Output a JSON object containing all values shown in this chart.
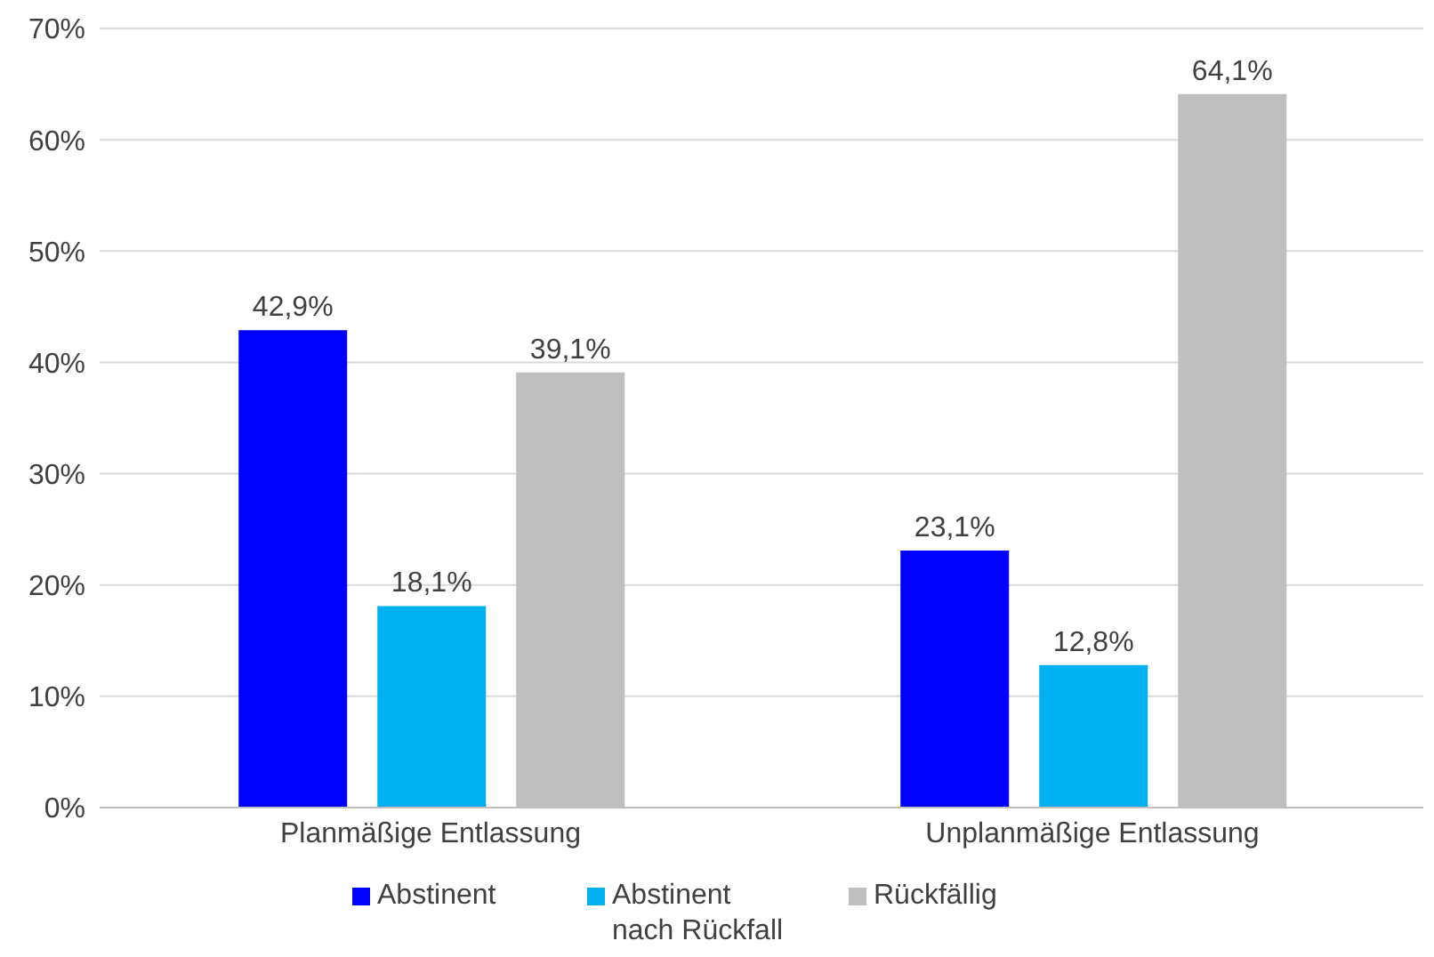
{
  "chart_data": {
    "type": "bar",
    "categories": [
      "Planmäßige Entlassung",
      "Unplanmäßige Entlassung"
    ],
    "series": [
      {
        "name": "Abstinent",
        "color": "#0000ff",
        "values": [
          42.9,
          23.1
        ],
        "value_labels": [
          "42,9%",
          "23,1%"
        ]
      },
      {
        "name": "Abstinent nach Rückfall",
        "color": "#00b0f0",
        "values": [
          18.1,
          12.8
        ],
        "value_labels": [
          "18,1%",
          "12,8%"
        ]
      },
      {
        "name": "Rückfällig",
        "color": "#bfbfbf",
        "values": [
          39.1,
          64.1
        ],
        "value_labels": [
          "39,1%",
          "64,1%"
        ]
      }
    ],
    "ylim": [
      0,
      70
    ],
    "yticks": [
      {
        "value": 0,
        "label": "0%"
      },
      {
        "value": 10,
        "label": "10%"
      },
      {
        "value": 20,
        "label": "20%"
      },
      {
        "value": 30,
        "label": "30%"
      },
      {
        "value": 40,
        "label": "40%"
      },
      {
        "value": 50,
        "label": "50%"
      },
      {
        "value": 60,
        "label": "60%"
      },
      {
        "value": 70,
        "label": "70%"
      }
    ],
    "grid": "y",
    "legend": "bottom"
  }
}
